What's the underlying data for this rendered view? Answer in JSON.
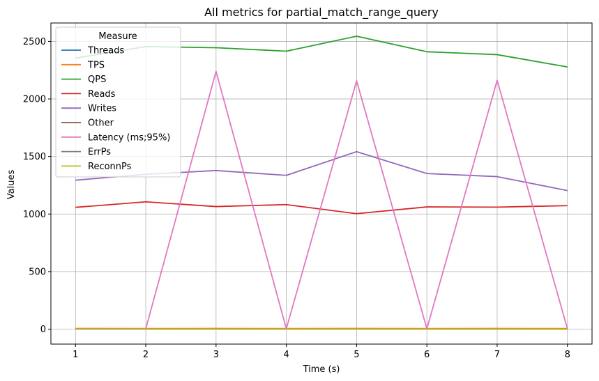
{
  "chart_data": {
    "type": "line",
    "title": "All metrics for partial_match_range_query",
    "xlabel": "Time (s)",
    "ylabel": "Values",
    "x": [
      1,
      2,
      3,
      4,
      5,
      6,
      7,
      8
    ],
    "xticks": [
      "1",
      "2",
      "3",
      "4",
      "5",
      "6",
      "7",
      "8"
    ],
    "yticks": [
      "0",
      "500",
      "1000",
      "1500",
      "2000",
      "2500"
    ],
    "xlim": [
      0.65,
      8.35
    ],
    "ylim": [
      -130,
      2660
    ],
    "grid": true,
    "legend": {
      "title": "Measure",
      "placement": "top-left"
    },
    "series": [
      {
        "name": "Threads",
        "color": "#1f77b4",
        "values": [
          4,
          4,
          4,
          4,
          4,
          4,
          4,
          4
        ]
      },
      {
        "name": "TPS",
        "color": "#ff7f0e",
        "values": [
          6,
          5,
          6,
          5,
          6,
          5,
          6,
          5
        ]
      },
      {
        "name": "QPS",
        "color": "#2ca02c",
        "values": [
          2355,
          2455,
          2445,
          2415,
          2545,
          2410,
          2385,
          2278
        ]
      },
      {
        "name": "Reads",
        "color": "#d62728",
        "values": [
          1058,
          1106,
          1065,
          1082,
          1003,
          1062,
          1060,
          1073
        ]
      },
      {
        "name": "Writes",
        "color": "#9467bd",
        "values": [
          1294,
          1345,
          1378,
          1336,
          1542,
          1352,
          1325,
          1204
        ]
      },
      {
        "name": "Other",
        "color": "#8c564b",
        "values": [
          0,
          0,
          0,
          0,
          0,
          0,
          0,
          0
        ]
      },
      {
        "name": "Latency (ms;95%)",
        "color": "#e377c2",
        "values": [
          2,
          3,
          2240,
          3,
          2158,
          3,
          2162,
          3
        ]
      },
      {
        "name": "ErrPs",
        "color": "#7f7f7f",
        "values": [
          0,
          0,
          0,
          0,
          0,
          0,
          0,
          0
        ]
      },
      {
        "name": "ReconnPs",
        "color": "#bcbd22",
        "values": [
          0,
          0,
          0,
          0,
          0,
          0,
          0,
          0
        ]
      }
    ]
  }
}
